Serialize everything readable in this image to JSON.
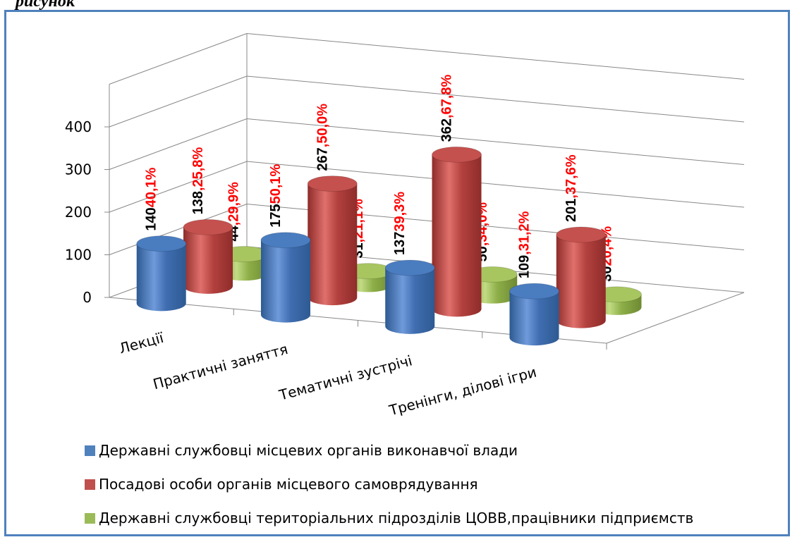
{
  "page": {
    "top_text": "рисунок"
  },
  "chart_data": {
    "type": "bar",
    "categories": [
      "Лекції",
      "Практичні заняття",
      "Тематичні зустрічі",
      "Тренінги, ділові ігри"
    ],
    "y_ticks": [
      "0",
      "100",
      "200",
      "300",
      "400"
    ],
    "ylim": [
      0,
      400
    ],
    "series": [
      {
        "name": "Державні службовці місцевих органів виконавчої влади",
        "color": "#4F81BD",
        "values": [
          140,
          175,
          137,
          109
        ],
        "labels": [
          {
            "n": "140",
            "p": "40,1%"
          },
          {
            "n": "175",
            "p": "50,1%"
          },
          {
            "n": "137",
            "p": "39,3%"
          },
          {
            "n": "109",
            "p": ",31,2%"
          }
        ]
      },
      {
        "name": "Посадові особи органів місцевого самоврядування",
        "color": "#C0504D",
        "values": [
          138,
          267,
          362,
          201
        ],
        "labels": [
          {
            "n": "138",
            "p": ",25,8%"
          },
          {
            "n": "267",
            "p": ",50,0%"
          },
          {
            "n": "362",
            "p": ",67,8%"
          },
          {
            "n": "201",
            "p": ",37,6%"
          }
        ]
      },
      {
        "name": "Державні службовці територіальних підрозділів ЦОВВ,працівники підприємств",
        "color": "#9BBB59",
        "values": [
          44,
          31,
          50,
          30
        ],
        "labels": [
          {
            "n": "44",
            "p": ",29,9%"
          },
          {
            "n": "31",
            "p": ",21,1%"
          },
          {
            "n": "50",
            "p": ",34,0%"
          },
          {
            "n": "30",
            "p": "20,4%"
          }
        ]
      }
    ],
    "label_colors": {
      "number": "#000000",
      "percent": "#FF0000"
    },
    "grid": true,
    "legend_position": "bottom"
  }
}
